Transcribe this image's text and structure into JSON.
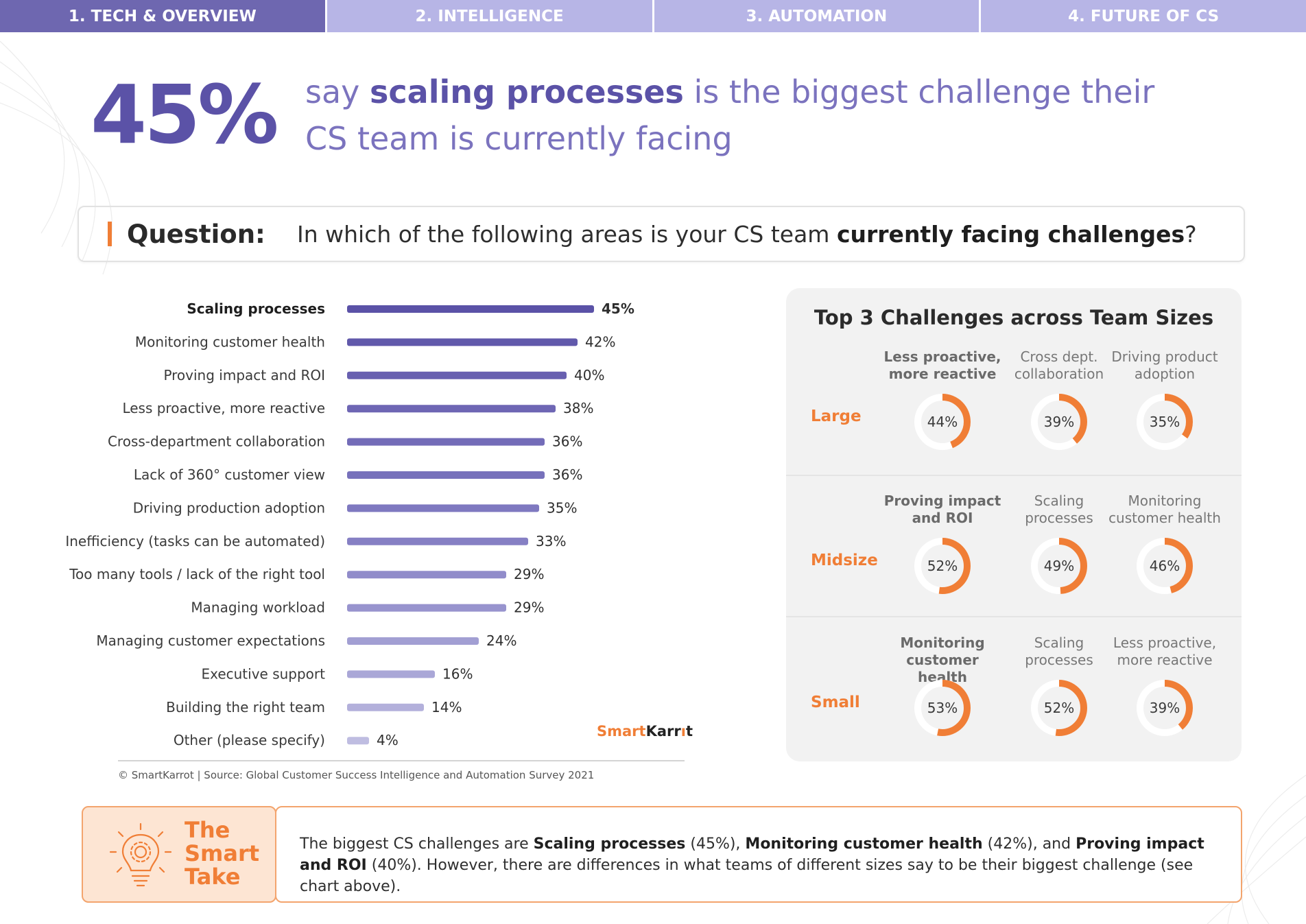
{
  "tabs": [
    {
      "label": "1. TECH & OVERVIEW",
      "active": true
    },
    {
      "label": "2. INTELLIGENCE",
      "active": false
    },
    {
      "label": "3. AUTOMATION",
      "active": false
    },
    {
      "label": "4. FUTURE OF CS",
      "active": false
    }
  ],
  "headline": {
    "stat": "45%",
    "prefix": "say ",
    "emphasis": "scaling processes",
    "suffix": " is the biggest challenge their CS team is currently facing"
  },
  "question": {
    "label": "Question:",
    "text_prefix": "In which of the following areas is your CS team ",
    "text_bold": "currently facing challenges",
    "text_suffix": "?"
  },
  "chart_data": [
    {
      "type": "bar",
      "orientation": "horizontal",
      "categories": [
        "Scaling processes",
        "Monitoring customer health",
        "Proving impact and ROI",
        "Less proactive, more reactive",
        "Cross-department collaboration",
        "Lack of 360° customer view",
        "Driving production adoption",
        "Inefficiency (tasks can be automated)",
        "Too many tools / lack of the right tool",
        "Managing workload",
        "Managing customer expectations",
        "Executive support",
        "Building the right team",
        "Other (please specify)"
      ],
      "values": [
        45,
        42,
        40,
        38,
        36,
        36,
        35,
        33,
        29,
        29,
        24,
        16,
        14,
        4
      ],
      "value_labels": [
        "45%",
        "42%",
        "40%",
        "38%",
        "36%",
        "36%",
        "35%",
        "33%",
        "29%",
        "29%",
        "24%",
        "16%",
        "14%",
        "4%"
      ],
      "highlight_index": 0,
      "colors": [
        "#5b52a7",
        "#6159ab",
        "#6860b0",
        "#6e66b4",
        "#736cb8",
        "#7771bb",
        "#7f79c0",
        "#8680c4",
        "#918cca",
        "#9894ce",
        "#a29fd3",
        "#aaa7d7",
        "#b3b0db",
        "#bfbde1"
      ]
    },
    {
      "type": "donut",
      "title": "Top 3 Challenges across Team Sizes",
      "rows": [
        {
          "group": "Large",
          "items": [
            {
              "label": "Less proactive, more reactive",
              "value": 44,
              "value_label": "44%",
              "bold": true
            },
            {
              "label": "Cross dept. collaboration",
              "value": 39,
              "value_label": "39%",
              "bold": false
            },
            {
              "label": "Driving product adoption",
              "value": 35,
              "value_label": "35%",
              "bold": false
            }
          ]
        },
        {
          "group": "Midsize",
          "items": [
            {
              "label": "Proving impact and ROI",
              "value": 52,
              "value_label": "52%",
              "bold": true
            },
            {
              "label": "Scaling processes",
              "value": 49,
              "value_label": "49%",
              "bold": false
            },
            {
              "label": "Monitoring customer health",
              "value": 46,
              "value_label": "46%",
              "bold": false
            }
          ]
        },
        {
          "group": "Small",
          "items": [
            {
              "label": "Monitoring customer health",
              "value": 53,
              "value_label": "53%",
              "bold": true
            },
            {
              "label": "Scaling processes",
              "value": 52,
              "value_label": "52%",
              "bold": false
            },
            {
              "label": "Less proactive, more reactive",
              "value": 39,
              "value_label": "39%",
              "bold": false
            }
          ]
        }
      ],
      "colors": {
        "arc": "#f07e36",
        "track": "#ffffff"
      }
    }
  ],
  "brand": {
    "logo_a": "Smart",
    "logo_b": "Karr",
    "logo_c": "t"
  },
  "source": "© SmartKarrot | Source: Global Customer Success Intelligence and Automation Survey 2021",
  "smart_take": {
    "title_line1": "The",
    "title_line2": "Smart",
    "title_line3": "Take",
    "icon": "lightbulb-gear-icon",
    "text": [
      {
        "t": "The biggest CS challenges are ",
        "b": false
      },
      {
        "t": "Scaling processes",
        "b": true
      },
      {
        "t": " (45%), ",
        "b": false
      },
      {
        "t": "Monitoring customer health",
        "b": true
      },
      {
        "t": " (42%), and ",
        "b": false
      },
      {
        "t": "Proving impact and ROI",
        "b": true
      },
      {
        "t": " (40%). However, there are differences in what teams of different sizes say to be their biggest challenge (see chart above).",
        "b": false
      }
    ]
  },
  "colors": {
    "primary": "#5b52a7",
    "accent": "#f07e36",
    "tab_inactive": "#b7b5e6",
    "tab_active": "#6e67b0"
  }
}
